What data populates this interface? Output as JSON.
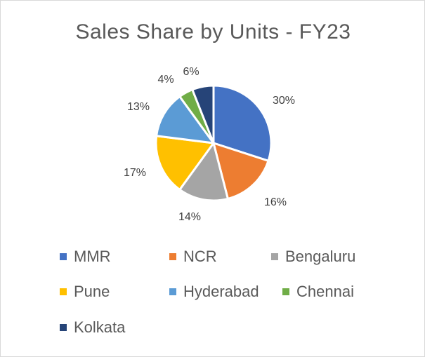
{
  "chart_data": {
    "type": "pie",
    "title": "Sales Share by Units - FY23",
    "categories": [
      "MMR",
      "NCR",
      "Bengaluru",
      "Pune",
      "Hyderabad",
      "Chennai",
      "Kolkata"
    ],
    "values": [
      30,
      16,
      14,
      17,
      13,
      4,
      6
    ],
    "value_labels": [
      "30%",
      "16%",
      "14%",
      "17%",
      "13%",
      "4%",
      "6%"
    ],
    "colors": [
      "#4472C4",
      "#ED7D31",
      "#A5A5A5",
      "#FFC000",
      "#5B9BD5",
      "#70AD47",
      "#264478"
    ],
    "legend_position": "bottom",
    "start_angle_deg": 0,
    "direction": "clockwise"
  }
}
